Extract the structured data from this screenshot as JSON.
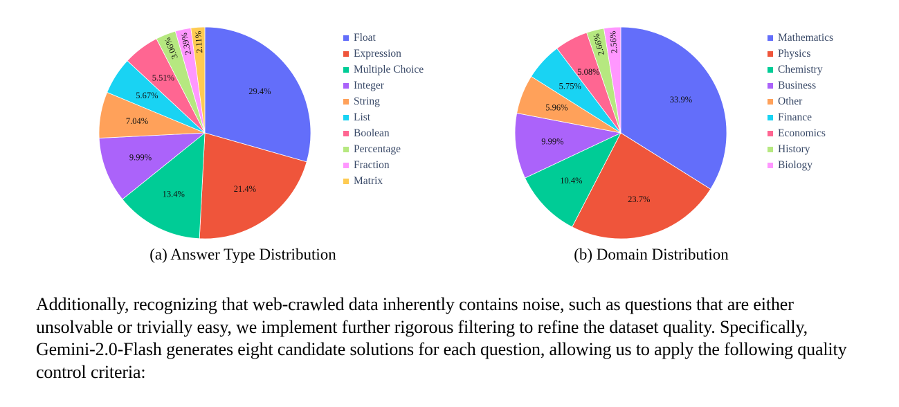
{
  "chart_data": [
    {
      "type": "pie",
      "title": "",
      "caption": "(a) Answer Type Distribution",
      "legend_position": "right",
      "direction": "clockwise-from-top",
      "slices": [
        {
          "label": "Float",
          "value": 29.4,
          "display": "29.4%",
          "color": "#636efa"
        },
        {
          "label": "Expression",
          "value": 21.4,
          "display": "21.4%",
          "color": "#ef553b"
        },
        {
          "label": "Multiple Choice",
          "value": 13.4,
          "display": "13.4%",
          "color": "#00cc96"
        },
        {
          "label": "Integer",
          "value": 9.99,
          "display": "9.99%",
          "color": "#ab63fa"
        },
        {
          "label": "String",
          "value": 7.04,
          "display": "7.04%",
          "color": "#ffa15a"
        },
        {
          "label": "List",
          "value": 5.67,
          "display": "5.67%",
          "color": "#19d3f3"
        },
        {
          "label": "Boolean",
          "value": 5.51,
          "display": "5.51%",
          "color": "#ff6692"
        },
        {
          "label": "Percentage",
          "value": 3.06,
          "display": "3.06%",
          "color": "#b6e880"
        },
        {
          "label": "Fraction",
          "value": 2.39,
          "display": "2.39%",
          "color": "#ff97ff"
        },
        {
          "label": "Matrix",
          "value": 2.11,
          "display": "2.11%",
          "color": "#fecb52"
        }
      ]
    },
    {
      "type": "pie",
      "title": "",
      "caption": "(b) Domain Distribution",
      "legend_position": "right",
      "direction": "clockwise-from-top",
      "slices": [
        {
          "label": "Mathematics",
          "value": 33.9,
          "display": "33.9%",
          "color": "#636efa"
        },
        {
          "label": "Physics",
          "value": 23.7,
          "display": "23.7%",
          "color": "#ef553b"
        },
        {
          "label": "Chemistry",
          "value": 10.4,
          "display": "10.4%",
          "color": "#00cc96"
        },
        {
          "label": "Business",
          "value": 9.99,
          "display": "9.99%",
          "color": "#ab63fa"
        },
        {
          "label": "Other",
          "value": 5.96,
          "display": "5.96%",
          "color": "#ffa15a"
        },
        {
          "label": "Finance",
          "value": 5.75,
          "display": "5.75%",
          "color": "#19d3f3"
        },
        {
          "label": "Economics",
          "value": 5.08,
          "display": "5.08%",
          "color": "#ff6692"
        },
        {
          "label": "History",
          "value": 2.66,
          "display": "2.66%",
          "color": "#b6e880"
        },
        {
          "label": "Biology",
          "value": 2.56,
          "display": "2.56%",
          "color": "#ff97ff"
        }
      ]
    }
  ],
  "paragraph": "Additionally, recognizing that web-crawled data inherently contains noise, such as questions that are either unsolvable or trivially easy, we implement further rigorous filtering to refine the dataset quality. Specifically, Gemini-2.0-Flash generates eight candidate solutions for each question, allowing us to apply the following quality control criteria:"
}
